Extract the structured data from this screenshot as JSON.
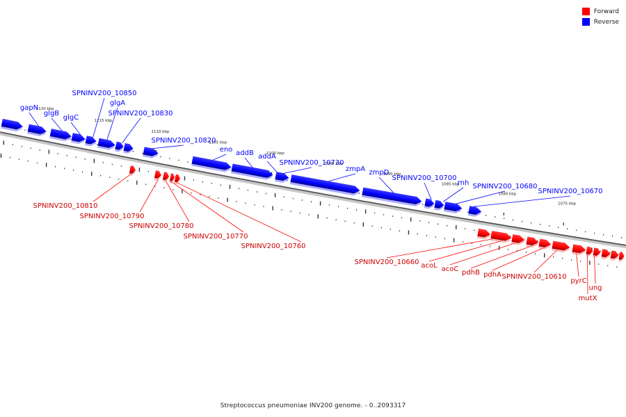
{
  "title": "Streptococcus pneumoniae INV200 genome. - 0..2093317",
  "legend": [
    {
      "label": "Forward",
      "color": "#ff0000"
    },
    {
      "label": "Reverse",
      "color": "#0000ff"
    }
  ],
  "colors": {
    "forward": "#ff0000",
    "reverse": "#0000ff",
    "backbone": "#555555"
  },
  "ticks": [
    "1120 kbp",
    "1115 kbp",
    "1110 kbp",
    "1105 kbp",
    "1100 kbp",
    "1095 kbp",
    "1090 kbp",
    "1085 kbp",
    "1080 kbp",
    "1075 kbp"
  ],
  "reverse_genes": [
    "gapN",
    "glgB",
    "glgC",
    "SPNINV200_10850",
    "glgA",
    "SPNINV200_10830",
    "SPNINV200_10820",
    "eno",
    "addB",
    "addA",
    "SPNINV200_10730",
    "zmpA",
    "zmpD",
    "SPNINV200_10700",
    "rnh",
    "SPNINV200_10680",
    "SPNINV200_10670"
  ],
  "forward_genes": [
    "SPNINV200_10810",
    "SPNINV200_10790",
    "SPNINV200_10780",
    "SPNINV200_10770",
    "SPNINV200_10760",
    "SPNINV200_10660",
    "acoL",
    "acoC",
    "pdhB",
    "pdhA",
    "SPNINV200_10610",
    "pyrC",
    "mutX",
    "ung"
  ]
}
